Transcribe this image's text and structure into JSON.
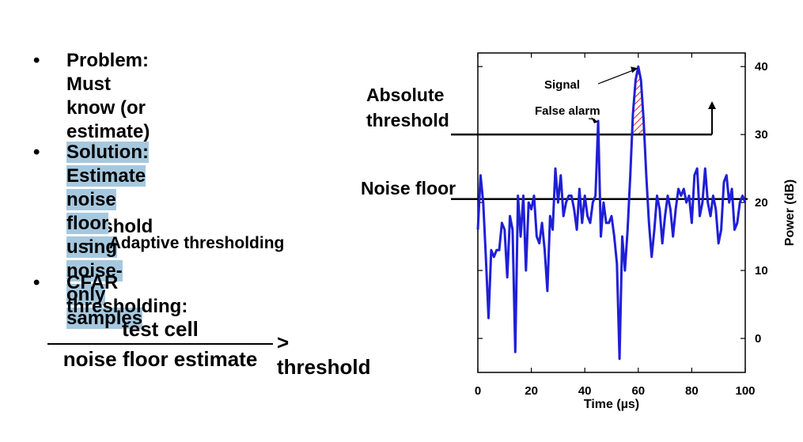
{
  "slide": {
    "bullets": [
      {
        "text": "Problem: Must know (or\nestimate) noise floor to\nset threshold",
        "highlight": false
      },
      {
        "text": "Solution: Estimate noise\nfloor using noise-only\nsamples",
        "highlight": true
      },
      {
        "text": "CFAR thresholding:",
        "highlight": false
      }
    ],
    "bullet_glyph": "•",
    "sub_bullet": {
      "dash": "–",
      "text": "Adaptive thresholding"
    },
    "formula": {
      "numerator": "test cell",
      "denominator": "noise floor estimate",
      "relation": "> threshold"
    },
    "highlight_color": "#a6c8de"
  },
  "chart_data": {
    "type": "line",
    "xlabel": "Time (µs)",
    "ylabel": "Power (dB)",
    "xlim": [
      0,
      100
    ],
    "ylim": [
      -5,
      42
    ],
    "xticks": [
      0,
      20,
      40,
      60,
      80,
      100
    ],
    "yticks": [
      0,
      10,
      20,
      30,
      40
    ],
    "grid": false,
    "series": [
      {
        "color": "#1f1fd6",
        "x": [
          0,
          1,
          2,
          3,
          4,
          5,
          6,
          7,
          8,
          9,
          10,
          11,
          12,
          13,
          14,
          15,
          16,
          17,
          18,
          19,
          20,
          21,
          22,
          23,
          24,
          25,
          26,
          27,
          28,
          29,
          30,
          31,
          32,
          33,
          34,
          35,
          36,
          37,
          38,
          39,
          40,
          41,
          42,
          43,
          44,
          45,
          46,
          47,
          48,
          49,
          50,
          51,
          52,
          53,
          54,
          55,
          56,
          57,
          58,
          59,
          60,
          61,
          62,
          63,
          64,
          65,
          66,
          67,
          68,
          69,
          70,
          71,
          72,
          73,
          74,
          75,
          76,
          77,
          78,
          79,
          80,
          81,
          82,
          83,
          84,
          85,
          86,
          87,
          88,
          89,
          90,
          91,
          92,
          93,
          94,
          95,
          96,
          97,
          98,
          99,
          100
        ],
        "y": [
          16,
          24,
          20,
          12,
          3,
          13,
          12,
          13,
          13,
          17,
          16,
          9,
          18,
          16,
          -2,
          21,
          15,
          21,
          10,
          20,
          19,
          21,
          15,
          14,
          17,
          13,
          7,
          18,
          16,
          25,
          20,
          24,
          18,
          20,
          21,
          21,
          19,
          16,
          22,
          17,
          21,
          18,
          17,
          20,
          21,
          32,
          15,
          20,
          17,
          17,
          18,
          15,
          11,
          -3,
          15,
          10,
          16,
          24,
          33,
          38,
          40,
          38,
          32,
          24,
          17,
          12,
          16,
          21,
          19,
          14,
          18,
          21,
          19,
          15,
          19,
          22,
          21,
          22,
          20,
          21,
          17,
          24,
          25,
          18,
          20,
          25,
          20,
          18,
          21,
          19,
          14,
          16,
          23,
          24,
          20,
          22,
          16,
          17,
          20,
          21,
          20
        ]
      }
    ],
    "annotations": {
      "absolute_threshold": {
        "label": "Absolute\nthreshold",
        "y": 30
      },
      "noise_floor": {
        "label": "Noise floor",
        "y": 20.5
      },
      "signal": {
        "label": "Signal",
        "x": 61,
        "y": 40
      },
      "false_alarm": {
        "label": "False alarm",
        "x": 45,
        "y": 32
      },
      "exceedance_fill_color": "#e02020"
    }
  }
}
